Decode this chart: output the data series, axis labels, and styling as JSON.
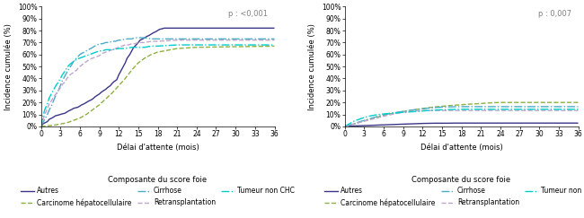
{
  "left": {
    "p_value": "p : <0,001",
    "xlabel": "Délai d'attente (mois)",
    "ylabel": "Incidence cumulée (%)",
    "yticks": [
      "0%",
      "10%",
      "20%",
      "30%",
      "40%",
      "50%",
      "60%",
      "70%",
      "80%",
      "90%",
      "100%"
    ],
    "xticks": [
      0,
      3,
      6,
      9,
      12,
      15,
      18,
      21,
      24,
      27,
      30,
      33,
      36
    ],
    "series": {
      "Autres": {
        "color": "#3b3588",
        "linestyle": "solid",
        "linewidth": 1.0,
        "x": [
          0,
          0.3,
          0.6,
          1,
          1.3,
          1.7,
          2,
          2.3,
          2.7,
          3,
          3.3,
          3.7,
          4,
          4.3,
          4.7,
          5,
          5.3,
          5.7,
          6,
          6.3,
          6.7,
          7,
          7.3,
          7.7,
          8,
          8.3,
          8.7,
          9,
          9.3,
          9.7,
          10,
          10.3,
          10.7,
          11,
          11.3,
          11.7,
          12,
          12.3,
          12.7,
          13,
          13.3,
          13.7,
          14,
          14.3,
          14.7,
          15,
          15.3,
          15.7,
          16,
          16.3,
          16.7,
          17,
          17.3,
          17.7,
          18,
          18.3,
          18.7,
          19,
          20,
          21,
          24,
          36
        ],
        "y": [
          0,
          0.02,
          0.03,
          0.04,
          0.06,
          0.07,
          0.08,
          0.09,
          0.095,
          0.1,
          0.105,
          0.11,
          0.12,
          0.13,
          0.14,
          0.15,
          0.155,
          0.16,
          0.17,
          0.18,
          0.19,
          0.2,
          0.21,
          0.22,
          0.23,
          0.245,
          0.26,
          0.27,
          0.285,
          0.3,
          0.31,
          0.325,
          0.34,
          0.36,
          0.375,
          0.39,
          0.43,
          0.46,
          0.5,
          0.53,
          0.57,
          0.6,
          0.63,
          0.66,
          0.68,
          0.7,
          0.72,
          0.73,
          0.74,
          0.75,
          0.76,
          0.77,
          0.78,
          0.79,
          0.8,
          0.81,
          0.815,
          0.82,
          0.82,
          0.82,
          0.82,
          0.82
        ]
      },
      "Carcinome hépatocellulaire": {
        "color": "#8db040",
        "linestyle": "dashed",
        "linewidth": 1.0,
        "x": [
          0,
          1,
          2,
          3,
          4,
          5,
          6,
          7,
          8,
          9,
          10,
          11,
          12,
          13,
          14,
          15,
          16,
          17,
          18,
          19,
          20,
          21,
          24,
          36
        ],
        "y": [
          0,
          0.005,
          0.01,
          0.02,
          0.03,
          0.05,
          0.07,
          0.1,
          0.14,
          0.18,
          0.23,
          0.28,
          0.34,
          0.4,
          0.47,
          0.53,
          0.57,
          0.6,
          0.62,
          0.63,
          0.64,
          0.65,
          0.66,
          0.67
        ]
      },
      "Cirrhose": {
        "color": "#4bacc6",
        "linestyle": "dashdot",
        "linewidth": 1.0,
        "x": [
          0,
          0.3,
          0.6,
          1,
          1.3,
          1.7,
          2,
          2.3,
          2.7,
          3,
          3.3,
          3.7,
          4,
          4.3,
          4.7,
          5,
          5.3,
          5.7,
          6,
          6.3,
          6.7,
          7,
          7.3,
          7.7,
          8,
          8.3,
          8.7,
          9,
          9.5,
          10,
          10.5,
          11,
          11.5,
          12,
          12.5,
          13,
          13.5,
          14,
          14.5,
          15,
          15.5,
          16,
          17,
          18,
          21,
          24,
          36
        ],
        "y": [
          0,
          0.03,
          0.06,
          0.1,
          0.14,
          0.18,
          0.22,
          0.26,
          0.3,
          0.34,
          0.38,
          0.42,
          0.45,
          0.48,
          0.51,
          0.54,
          0.56,
          0.58,
          0.6,
          0.61,
          0.62,
          0.63,
          0.64,
          0.65,
          0.66,
          0.67,
          0.68,
          0.69,
          0.69,
          0.7,
          0.7,
          0.71,
          0.71,
          0.72,
          0.72,
          0.73,
          0.73,
          0.73,
          0.74,
          0.74,
          0.74,
          0.74,
          0.73,
          0.73,
          0.73,
          0.73,
          0.73
        ]
      },
      "Retransplantation": {
        "color": "#c0a6cc",
        "linestyle": "dashed",
        "linewidth": 1.0,
        "x": [
          0,
          0.3,
          0.6,
          1,
          1.3,
          1.7,
          2,
          2.3,
          2.7,
          3,
          3.3,
          3.7,
          4,
          4.5,
          5,
          5.5,
          6,
          6.5,
          7,
          7.5,
          8,
          8.5,
          9,
          9.5,
          10,
          10.5,
          11,
          11.5,
          12,
          12.5,
          13,
          13.5,
          14,
          14.5,
          15,
          16,
          17,
          18,
          21,
          24,
          36
        ],
        "y": [
          0,
          0.05,
          0.1,
          0.15,
          0.19,
          0.22,
          0.25,
          0.27,
          0.3,
          0.32,
          0.35,
          0.37,
          0.4,
          0.43,
          0.45,
          0.47,
          0.5,
          0.52,
          0.54,
          0.56,
          0.57,
          0.58,
          0.59,
          0.61,
          0.62,
          0.63,
          0.64,
          0.65,
          0.66,
          0.67,
          0.68,
          0.68,
          0.69,
          0.69,
          0.7,
          0.7,
          0.71,
          0.71,
          0.72,
          0.72,
          0.72
        ]
      },
      "Tumeur non CHC": {
        "color": "#00cccc",
        "linestyle": "dashdot",
        "linewidth": 1.0,
        "x": [
          0,
          0.3,
          0.6,
          1,
          1.3,
          1.7,
          2,
          2.3,
          2.7,
          3,
          3.3,
          3.7,
          4,
          4.5,
          5,
          5.5,
          6,
          6.5,
          7,
          7.5,
          8,
          8.5,
          9,
          9.5,
          10,
          11,
          12,
          13,
          14,
          15,
          16,
          17,
          18,
          21,
          24,
          36
        ],
        "y": [
          0,
          0.08,
          0.14,
          0.19,
          0.24,
          0.28,
          0.31,
          0.34,
          0.37,
          0.4,
          0.43,
          0.46,
          0.49,
          0.52,
          0.54,
          0.56,
          0.57,
          0.58,
          0.59,
          0.6,
          0.61,
          0.62,
          0.63,
          0.63,
          0.64,
          0.64,
          0.65,
          0.65,
          0.66,
          0.66,
          0.66,
          0.67,
          0.67,
          0.68,
          0.68,
          0.68
        ]
      }
    }
  },
  "right": {
    "p_value": "p : 0,007",
    "xlabel": "Délai d'attente (mois)",
    "ylabel": "Incidence cumulée (%)",
    "yticks": [
      "0%",
      "10%",
      "20%",
      "30%",
      "40%",
      "50%",
      "60%",
      "70%",
      "80%",
      "90%",
      "100%"
    ],
    "xticks": [
      0,
      3,
      6,
      9,
      12,
      15,
      18,
      21,
      24,
      27,
      30,
      33,
      36
    ],
    "series": {
      "Autres": {
        "color": "#3b3588",
        "linestyle": "solid",
        "linewidth": 1.0,
        "x": [
          0,
          1,
          2,
          3,
          4,
          5,
          6,
          7,
          8,
          9,
          10,
          11,
          12,
          13,
          14,
          15,
          16,
          17,
          18,
          19,
          20,
          21,
          24,
          36
        ],
        "y": [
          0,
          0.003,
          0.005,
          0.007,
          0.009,
          0.011,
          0.013,
          0.015,
          0.017,
          0.019,
          0.021,
          0.023,
          0.025,
          0.026,
          0.027,
          0.027,
          0.027,
          0.028,
          0.028,
          0.028,
          0.028,
          0.028,
          0.028,
          0.028
        ]
      },
      "Carcinome hépatocellulaire": {
        "color": "#8db040",
        "linestyle": "dashed",
        "linewidth": 1.0,
        "x": [
          0,
          0.5,
          1,
          1.5,
          2,
          2.5,
          3,
          3.5,
          4,
          4.5,
          5,
          5.5,
          6,
          6.5,
          7,
          7.5,
          8,
          8.5,
          9,
          9.5,
          10,
          10.5,
          11,
          11.5,
          12,
          12.5,
          13,
          14,
          15,
          16,
          17,
          18,
          19,
          20,
          21,
          22,
          23,
          24,
          36
        ],
        "y": [
          0,
          0.007,
          0.015,
          0.022,
          0.03,
          0.038,
          0.046,
          0.054,
          0.062,
          0.07,
          0.078,
          0.085,
          0.092,
          0.098,
          0.104,
          0.109,
          0.114,
          0.119,
          0.124,
          0.129,
          0.133,
          0.137,
          0.141,
          0.145,
          0.149,
          0.153,
          0.157,
          0.163,
          0.168,
          0.173,
          0.177,
          0.181,
          0.185,
          0.188,
          0.191,
          0.195,
          0.198,
          0.2,
          0.2
        ]
      },
      "Cirrhose": {
        "color": "#4bacc6",
        "linestyle": "dashdot",
        "linewidth": 1.0,
        "x": [
          0,
          0.5,
          1,
          1.5,
          2,
          2.5,
          3,
          3.5,
          4,
          4.5,
          5,
          5.5,
          6,
          6.5,
          7,
          7.5,
          8,
          8.5,
          9,
          9.5,
          10,
          10.5,
          11,
          11.5,
          12,
          12.5,
          13,
          13.5,
          14,
          14.5,
          15,
          16,
          17,
          18,
          19,
          20,
          21,
          24,
          36
        ],
        "y": [
          0,
          0.008,
          0.016,
          0.024,
          0.033,
          0.042,
          0.05,
          0.058,
          0.066,
          0.074,
          0.082,
          0.089,
          0.096,
          0.102,
          0.107,
          0.112,
          0.117,
          0.121,
          0.125,
          0.129,
          0.133,
          0.137,
          0.141,
          0.144,
          0.147,
          0.15,
          0.153,
          0.155,
          0.157,
          0.159,
          0.161,
          0.163,
          0.164,
          0.165,
          0.165,
          0.165,
          0.165,
          0.165,
          0.165
        ]
      },
      "Retransplantation": {
        "color": "#c0a6cc",
        "linestyle": "dashed",
        "linewidth": 1.0,
        "x": [
          0,
          0.5,
          1,
          1.5,
          2,
          2.5,
          3,
          3.5,
          4,
          4.5,
          5,
          5.5,
          6,
          6.5,
          7,
          7.5,
          8,
          8.5,
          9,
          9.5,
          10,
          10.5,
          11,
          11.5,
          12,
          12.5,
          13,
          13.5,
          14,
          14.5,
          15,
          16,
          17,
          18,
          21,
          24,
          36
        ],
        "y": [
          0,
          0.007,
          0.014,
          0.021,
          0.028,
          0.036,
          0.043,
          0.05,
          0.057,
          0.064,
          0.071,
          0.078,
          0.085,
          0.091,
          0.097,
          0.103,
          0.108,
          0.113,
          0.118,
          0.122,
          0.126,
          0.128,
          0.13,
          0.131,
          0.132,
          0.133,
          0.133,
          0.133,
          0.133,
          0.133,
          0.133,
          0.133,
          0.133,
          0.133,
          0.133,
          0.133,
          0.133
        ]
      },
      "Tumeur non CHC": {
        "color": "#00cccc",
        "linestyle": "dashdot",
        "linewidth": 1.0,
        "x": [
          0,
          0.5,
          1,
          1.5,
          2,
          2.5,
          3,
          3.5,
          4,
          4.5,
          5,
          5.5,
          6,
          6.5,
          7,
          7.5,
          8,
          8.5,
          9,
          9.5,
          10,
          10.5,
          11,
          11.5,
          12,
          12.5,
          13,
          13.5,
          14,
          15,
          16,
          17,
          18,
          21,
          24,
          36
        ],
        "y": [
          0,
          0.015,
          0.03,
          0.045,
          0.055,
          0.065,
          0.074,
          0.082,
          0.088,
          0.093,
          0.098,
          0.101,
          0.104,
          0.107,
          0.109,
          0.111,
          0.113,
          0.115,
          0.117,
          0.119,
          0.121,
          0.123,
          0.125,
          0.127,
          0.129,
          0.131,
          0.133,
          0.135,
          0.137,
          0.139,
          0.141,
          0.142,
          0.143,
          0.143,
          0.143,
          0.143
        ]
      }
    }
  },
  "legend": {
    "title": "Composante du score foie",
    "entries": [
      "Autres",
      "Carcinome hépatocellulaire",
      "Cirrhose",
      "Retransplantation",
      "Tumeur non CHC"
    ]
  },
  "legend_styles": {
    "Autres": {
      "color": "#3b3588",
      "linestyle": "solid"
    },
    "Carcinome hépatocellulaire": {
      "color": "#8db040",
      "linestyle": "dashed"
    },
    "Cirrhose": {
      "color": "#4bacc6",
      "linestyle": "dashdot"
    },
    "Retransplantation": {
      "color": "#c0a6cc",
      "linestyle": "dashed"
    },
    "Tumeur non CHC": {
      "color": "#00cccc",
      "linestyle": "dashdot"
    }
  },
  "background_color": "#ffffff",
  "fontsize_ticks": 5.5,
  "fontsize_labels": 6.0,
  "fontsize_legend_title": 6.0,
  "fontsize_legend": 5.5,
  "fontsize_pvalue": 6.0
}
